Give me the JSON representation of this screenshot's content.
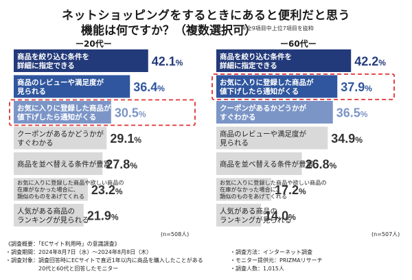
{
  "title_line1": "ネットショッピングをするときにあると便利だと思う",
  "title_line2": "機能は何ですか？（複数選択可）",
  "note": "※全9項目中上位7項目を抜粋",
  "chart_data": [
    {
      "type": "bar",
      "orientation": "horizontal",
      "title": "ー20代ー",
      "n_label": "(n=508人)",
      "unit": "%",
      "xlim": [
        0,
        50
      ],
      "categories": [
        "商品を絞り込む条件を\n詳細に指定できる",
        "商品のレビューや満足度が\n見られる",
        "お気に入りに登録した商品が\n値下げしたら通知がくる",
        "クーポンがあるかどうかが\nすぐわかる",
        "商品を並べ替える条件が豊富",
        "お気に入りに登録した商品や欲しい商品の\n在庫がなかった場合に、\n類似のものをあげてくれる",
        "人気がある商品の\nランキングが見られる"
      ],
      "values": [
        42.1,
        36.4,
        30.5,
        29.1,
        27.8,
        23.2,
        21.9
      ],
      "value_labels": [
        "42.1%",
        "36.4%",
        "30.5%",
        "29.1%",
        "27.8%",
        "23.2%",
        "21.9%"
      ],
      "highlighted_index": 2
    },
    {
      "type": "bar",
      "orientation": "horizontal",
      "title": "ー60代ー",
      "n_label": "(n=507人)",
      "unit": "%",
      "xlim": [
        0,
        50
      ],
      "categories": [
        "商品を絞り込む条件を\n詳細に指定できる",
        "お気に入りに登録した商品が\n値下げしたら通知がくる",
        "クーポンがあるかどうかが\nすぐわかる",
        "商品のレビューや満足度が\n見られる",
        "商品を並べ替える条件が豊富",
        "お気に入りに登録した商品や欲しい商品の\n在庫がなかった場合に、\n類似のものをあげてくれる",
        "人気がある商品の\nランキングが見られる"
      ],
      "values": [
        42.2,
        37.9,
        36.5,
        34.9,
        26.8,
        17.2,
        14.0
      ],
      "value_labels": [
        "42.2%",
        "37.9%",
        "36.5%",
        "34.9%",
        "26.8%",
        "17.2%",
        "14.0%"
      ],
      "highlighted_index": 1
    }
  ],
  "colors": {
    "bar_rank1": "#233a7a",
    "bar_rank2": "#2f569e",
    "bar_rank3": "#7b95c7",
    "bar_other": "#d9d9d9",
    "value_rank1": "#233a7a",
    "value_rank2": "#2f569e",
    "value_rank3": "#7b95c7",
    "value_other": "#333333",
    "highlight_box": "#e03030"
  },
  "footer_left": [
    "《調査概要：「ECサイト利用時」の意識調査》",
    "・調査期間：2024年8月7日（水）〜2024年8月8日（木）",
    "・調査対象：調査回答時にECサイトで直近1年以内に商品を購入したことがある",
    "　　　　　　20代と60代と回答したモニター"
  ],
  "footer_right": [
    "・調査方法：インターネット調査",
    "・モニター提供元：PRIZMAリサーチ",
    "・調査人数：1,015人"
  ]
}
